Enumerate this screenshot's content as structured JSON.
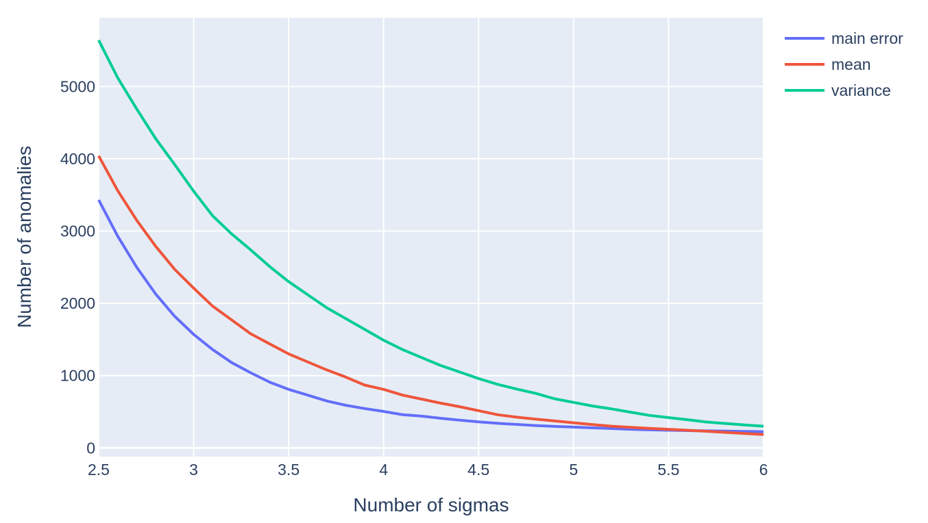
{
  "chart_data": {
    "type": "line",
    "title": "",
    "xlabel": "Number of sigmas",
    "ylabel": "Number of anomalies",
    "xlim": [
      2.5,
      6
    ],
    "ylim": [
      -120,
      5950
    ],
    "xticks": [
      "2.5",
      "3",
      "3.5",
      "4",
      "4.5",
      "5",
      "5.5",
      "6"
    ],
    "yticks": [
      "0",
      "1000",
      "2000",
      "3000",
      "4000",
      "5000"
    ],
    "grid": true,
    "legend_position": "top-right",
    "x": [
      2.5,
      2.6,
      2.7,
      2.8,
      2.9,
      3.0,
      3.1,
      3.2,
      3.3,
      3.4,
      3.5,
      3.6,
      3.7,
      3.8,
      3.9,
      4.0,
      4.1,
      4.2,
      4.3,
      4.4,
      4.5,
      4.6,
      4.7,
      4.8,
      4.9,
      5.0,
      5.1,
      5.2,
      5.3,
      5.4,
      5.5,
      5.6,
      5.7,
      5.8,
      5.9,
      6.0
    ],
    "series": [
      {
        "name": "main error",
        "color": "#636efa",
        "values": [
          3430,
          2930,
          2500,
          2130,
          1820,
          1570,
          1360,
          1180,
          1040,
          910,
          810,
          730,
          650,
          590,
          545,
          505,
          460,
          440,
          410,
          385,
          360,
          340,
          325,
          310,
          298,
          288,
          278,
          268,
          258,
          250,
          245,
          240,
          236,
          232,
          228,
          225
        ]
      },
      {
        "name": "mean",
        "color": "#ef553b",
        "values": [
          4040,
          3560,
          3150,
          2790,
          2470,
          2210,
          1960,
          1770,
          1580,
          1440,
          1300,
          1190,
          1080,
          980,
          870,
          810,
          730,
          675,
          620,
          570,
          515,
          460,
          425,
          398,
          373,
          348,
          322,
          300,
          285,
          270,
          258,
          245,
          230,
          215,
          200,
          185
        ]
      },
      {
        "name": "variance",
        "color": "#00cc96",
        "values": [
          5640,
          5120,
          4690,
          4280,
          3920,
          3550,
          3210,
          2960,
          2740,
          2510,
          2300,
          2120,
          1940,
          1790,
          1640,
          1490,
          1360,
          1250,
          1140,
          1050,
          960,
          880,
          815,
          755,
          680,
          630,
          580,
          540,
          495,
          450,
          420,
          390,
          358,
          338,
          318,
          300
        ]
      }
    ]
  }
}
